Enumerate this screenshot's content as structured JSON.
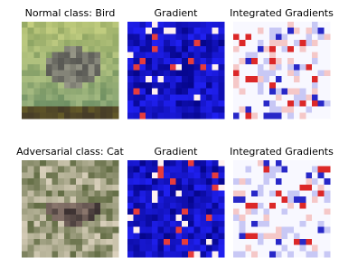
{
  "panels": [
    {
      "title": "Normal class: Bird"
    },
    {
      "title": "Gradient"
    },
    {
      "title": "Integrated Gradients"
    },
    {
      "title": "Adversarial class: Cat"
    },
    {
      "title": "Gradient"
    },
    {
      "title": "Integrated Gradients"
    }
  ]
}
